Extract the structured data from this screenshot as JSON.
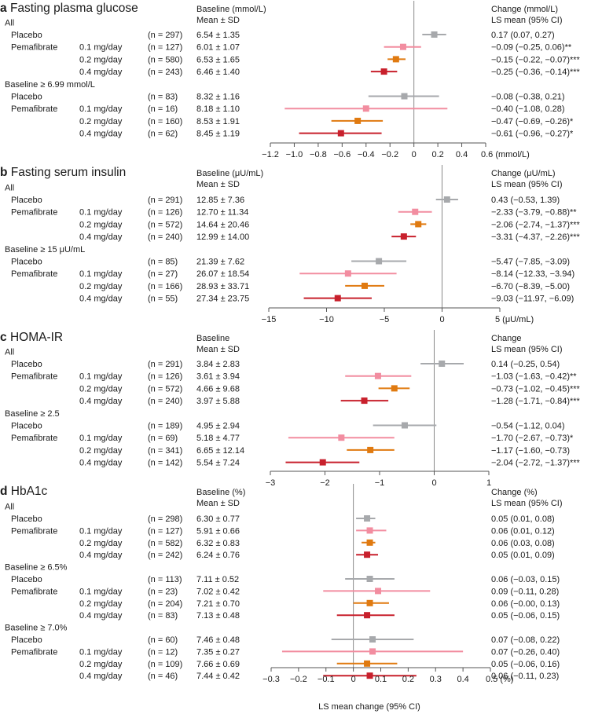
{
  "colors": {
    "placebo": "#a7a9ac",
    "pema_01": "#f28da0",
    "pema_02": "#e07a10",
    "pema_04": "#c8202c",
    "axis": "#555555"
  },
  "footer": {
    "xlabel": "LS mean change (95% CI)"
  },
  "chart_data": [
    {
      "type": "forest",
      "letter": "a",
      "title": "Fasting plasma glucose",
      "col_baseline": [
        "Baseline (mmol/L)",
        "Mean ± SD"
      ],
      "col_change": [
        "Change (mmol/L)",
        "LS mean (95% CI)"
      ],
      "xlim": [
        -1.2,
        0.6
      ],
      "ticks": [
        -1.2,
        -1.0,
        -0.8,
        -0.6,
        -0.4,
        -0.2,
        0,
        0.2,
        0.4,
        0.6
      ],
      "tick_labels": [
        "−1.2",
        "−1.0",
        "−0.8",
        "−0.6",
        "−0.4",
        "−0.2",
        "0",
        "0.2",
        "0.4",
        "0.6 (mmol/L)"
      ],
      "groups": [
        {
          "label": "All",
          "rows": [
            {
              "arm": "Placebo",
              "dose": "",
              "n": "(n = 297)",
              "baseline": "6.54 ± 1.35",
              "est": 0.17,
              "lo": 0.07,
              "hi": 0.27,
              "ci": "0.17 (0.07, 0.27)",
              "color": "placebo"
            },
            {
              "arm": "Pemafibrate",
              "dose": "0.1 mg/day",
              "n": "(n = 127)",
              "baseline": "6.01 ± 1.07",
              "est": -0.09,
              "lo": -0.25,
              "hi": 0.06,
              "ci": "−0.09 (−0.25, 0.06)**",
              "color": "pema_01"
            },
            {
              "arm": "",
              "dose": "0.2 mg/day",
              "n": "(n = 580)",
              "baseline": "6.53 ± 1.65",
              "est": -0.15,
              "lo": -0.22,
              "hi": -0.07,
              "ci": "−0.15 (−0.22, −0.07)***",
              "color": "pema_02"
            },
            {
              "arm": "",
              "dose": "0.4 mg/day",
              "n": "(n = 243)",
              "baseline": "6.46 ± 1.40",
              "est": -0.25,
              "lo": -0.36,
              "hi": -0.14,
              "ci": "−0.25 (−0.36, −0.14)***",
              "color": "pema_04"
            }
          ]
        },
        {
          "label": "Baseline ≥ 6.99 mmol/L",
          "rows": [
            {
              "arm": "Placebo",
              "dose": "",
              "n": "(n = 83)",
              "baseline": "8.32 ± 1.16",
              "est": -0.08,
              "lo": -0.38,
              "hi": 0.21,
              "ci": "−0.08 (−0.38, 0.21)",
              "color": "placebo"
            },
            {
              "arm": "Pemafibrate",
              "dose": "0.1 mg/day",
              "n": "(n = 16)",
              "baseline": "8.18 ± 1.10",
              "est": -0.4,
              "lo": -1.08,
              "hi": 0.28,
              "ci": "−0.40 (−1.08, 0.28)",
              "color": "pema_01"
            },
            {
              "arm": "",
              "dose": "0.2 mg/day",
              "n": "(n = 160)",
              "baseline": "8.53 ± 1.91",
              "est": -0.47,
              "lo": -0.69,
              "hi": -0.26,
              "ci": "−0.47 (−0.69, −0.26)*",
              "color": "pema_02"
            },
            {
              "arm": "",
              "dose": "0.4 mg/day",
              "n": "(n = 62)",
              "baseline": "8.45 ± 1.19",
              "est": -0.61,
              "lo": -0.96,
              "hi": -0.27,
              "ci": "−0.61 (−0.96, −0.27)*",
              "color": "pema_04"
            }
          ]
        }
      ]
    },
    {
      "type": "forest",
      "letter": "b",
      "title": "Fasting serum insulin",
      "col_baseline": [
        "Baseline (μU/mL)",
        "Mean ± SD"
      ],
      "col_change": [
        "Change (μU/mL)",
        "LS mean (95% CI)"
      ],
      "xlim": [
        -15,
        5
      ],
      "ticks": [
        -15,
        -10,
        -5,
        0,
        5
      ],
      "tick_labels": [
        "−15",
        "−10",
        "−5",
        "0",
        "5 (μU/mL)"
      ],
      "groups": [
        {
          "label": "All",
          "rows": [
            {
              "arm": "Placebo",
              "dose": "",
              "n": "(n = 291)",
              "baseline": "12.85 ± 7.36",
              "est": 0.43,
              "lo": -0.53,
              "hi": 1.39,
              "ci": "0.43 (−0.53, 1.39)",
              "color": "placebo"
            },
            {
              "arm": "Pemafibrate",
              "dose": "0.1 mg/day",
              "n": "(n = 126)",
              "baseline": "12.70 ± 11.34",
              "est": -2.33,
              "lo": -3.79,
              "hi": -0.88,
              "ci": "−2.33 (−3.79, −0.88)**",
              "color": "pema_01"
            },
            {
              "arm": "",
              "dose": "0.2 mg/day",
              "n": "(n = 572)",
              "baseline": "14.64 ± 20.46",
              "est": -2.06,
              "lo": -2.74,
              "hi": -1.37,
              "ci": "−2.06 (−2.74, −1.37)***",
              "color": "pema_02"
            },
            {
              "arm": "",
              "dose": "0.4 mg/day",
              "n": "(n = 240)",
              "baseline": "12.99 ± 14.00",
              "est": -3.31,
              "lo": -4.37,
              "hi": -2.26,
              "ci": "−3.31 (−4.37, −2.26)***",
              "color": "pema_04"
            }
          ]
        },
        {
          "label": "Baseline ≥ 15 μU/mL",
          "rows": [
            {
              "arm": "Placebo",
              "dose": "",
              "n": "(n = 85)",
              "baseline": "21.39 ± 7.62",
              "est": -5.47,
              "lo": -7.85,
              "hi": -3.09,
              "ci": "−5.47 (−7.85, −3.09)",
              "color": "placebo"
            },
            {
              "arm": "Pemafibrate",
              "dose": "0.1 mg/day",
              "n": "(n = 27)",
              "baseline": "26.07 ± 18.54",
              "est": -8.14,
              "lo": -12.33,
              "hi": -3.94,
              "ci": "−8.14 (−12.33, −3.94)",
              "color": "pema_01"
            },
            {
              "arm": "",
              "dose": "0.2 mg/day",
              "n": "(n = 166)",
              "baseline": "28.93 ± 33.71",
              "est": -6.7,
              "lo": -8.39,
              "hi": -5.0,
              "ci": "−6.70 (−8.39, −5.00)",
              "color": "pema_02"
            },
            {
              "arm": "",
              "dose": "0.4 mg/day",
              "n": "(n = 55)",
              "baseline": "27.34 ± 23.75",
              "est": -9.03,
              "lo": -11.97,
              "hi": -6.09,
              "ci": "−9.03 (−11.97, −6.09)",
              "color": "pema_04"
            }
          ]
        }
      ]
    },
    {
      "type": "forest",
      "letter": "c",
      "title": "HOMA-IR",
      "col_baseline": [
        "Baseline",
        "Mean ± SD"
      ],
      "col_change": [
        "Change",
        "LS mean (95% CI)"
      ],
      "xlim": [
        -3,
        1
      ],
      "ticks": [
        -3,
        -2,
        -1,
        0,
        1
      ],
      "tick_labels": [
        "−3",
        "−2",
        "−1",
        "0",
        "1"
      ],
      "groups": [
        {
          "label": "All",
          "rows": [
            {
              "arm": "Placebo",
              "dose": "",
              "n": "(n = 291)",
              "baseline": "3.84 ± 2.83",
              "est": 0.14,
              "lo": -0.25,
              "hi": 0.54,
              "ci": "0.14 (−0.25, 0.54)",
              "color": "placebo"
            },
            {
              "arm": "Pemafibrate",
              "dose": "0.1 mg/day",
              "n": "(n = 126)",
              "baseline": "3.61 ± 3.94",
              "est": -1.03,
              "lo": -1.63,
              "hi": -0.42,
              "ci": "−1.03 (−1.63, −0.42)**",
              "color": "pema_01"
            },
            {
              "arm": "",
              "dose": "0.2 mg/day",
              "n": "(n = 572)",
              "baseline": "4.66 ± 9.68",
              "est": -0.73,
              "lo": -1.02,
              "hi": -0.45,
              "ci": "−0.73 (−1.02, −0.45)***",
              "color": "pema_02"
            },
            {
              "arm": "",
              "dose": "0.4 mg/day",
              "n": "(n = 240)",
              "baseline": "3.97 ± 5.88",
              "est": -1.28,
              "lo": -1.71,
              "hi": -0.84,
              "ci": "−1.28 (−1.71, −0.84)***",
              "color": "pema_04"
            }
          ]
        },
        {
          "label": "Baseline ≥ 2.5",
          "rows": [
            {
              "arm": "Placebo",
              "dose": "",
              "n": "(n = 189)",
              "baseline": "4.95 ± 2.94",
              "est": -0.54,
              "lo": -1.12,
              "hi": 0.04,
              "ci": "−0.54 (−1.12, 0.04)",
              "color": "placebo"
            },
            {
              "arm": "Pemafibrate",
              "dose": "0.1 mg/day",
              "n": "(n = 69)",
              "baseline": "5.18 ± 4.77",
              "est": -1.7,
              "lo": -2.67,
              "hi": -0.73,
              "ci": "−1.70 (−2.67, −0.73)*",
              "color": "pema_01"
            },
            {
              "arm": "",
              "dose": "0.2 mg/day",
              "n": "(n = 341)",
              "baseline": "6.65 ± 12.14",
              "est": -1.17,
              "lo": -1.6,
              "hi": -0.73,
              "ci": "−1.17 (−1.60, −0.73)",
              "color": "pema_02"
            },
            {
              "arm": "",
              "dose": "0.4 mg/day",
              "n": "(n = 142)",
              "baseline": "5.54 ± 7.24",
              "est": -2.04,
              "lo": -2.72,
              "hi": -1.37,
              "ci": "−2.04 (−2.72, −1.37)***",
              "color": "pema_04"
            }
          ]
        }
      ]
    },
    {
      "type": "forest",
      "letter": "d",
      "title": "HbA1c",
      "col_baseline": [
        "Baseline (%)",
        "Mean ± SD"
      ],
      "col_change": [
        "Change (%)",
        "LS mean (95% CI)"
      ],
      "xlim": [
        -0.3,
        0.5
      ],
      "ticks": [
        -0.3,
        -0.2,
        -0.1,
        0,
        0.1,
        0.2,
        0.3,
        0.4,
        0.5
      ],
      "tick_labels": [
        "−0.3",
        "−0.2",
        "−0.1",
        "0",
        "0.1",
        "0.2",
        "0.3",
        "0.4",
        "0.5 (%)"
      ],
      "groups": [
        {
          "label": "All",
          "rows": [
            {
              "arm": "Placebo",
              "dose": "",
              "n": "(n = 298)",
              "baseline": "6.30 ± 0.77",
              "est": 0.05,
              "lo": 0.01,
              "hi": 0.08,
              "ci": "0.05 (0.01, 0.08)",
              "color": "placebo"
            },
            {
              "arm": "Pemafibrate",
              "dose": "0.1 mg/day",
              "n": "(n = 127)",
              "baseline": "5.91 ± 0.66",
              "est": 0.06,
              "lo": 0.01,
              "hi": 0.12,
              "ci": "0.06 (0.01, 0.12)",
              "color": "pema_01"
            },
            {
              "arm": "",
              "dose": "0.2 mg/day",
              "n": "(n = 582)",
              "baseline": "6.32 ± 0.83",
              "est": 0.06,
              "lo": 0.03,
              "hi": 0.08,
              "ci": "0.06 (0.03, 0.08)",
              "color": "pema_02"
            },
            {
              "arm": "",
              "dose": "0.4 mg/day",
              "n": "(n = 242)",
              "baseline": "6.24 ± 0.76",
              "est": 0.05,
              "lo": 0.01,
              "hi": 0.09,
              "ci": "0.05 (0.01, 0.09)",
              "color": "pema_04"
            }
          ]
        },
        {
          "label": "Baseline ≥ 6.5%",
          "rows": [
            {
              "arm": "Placebo",
              "dose": "",
              "n": "(n = 113)",
              "baseline": "7.11 ± 0.52",
              "est": 0.06,
              "lo": -0.03,
              "hi": 0.15,
              "ci": "0.06 (−0.03, 0.15)",
              "color": "placebo"
            },
            {
              "arm": "Pemafibrate",
              "dose": "0.1 mg/day",
              "n": "(n = 23)",
              "baseline": "7.02 ± 0.42",
              "est": 0.09,
              "lo": -0.11,
              "hi": 0.28,
              "ci": "0.09 (−0.11, 0.28)",
              "color": "pema_01"
            },
            {
              "arm": "",
              "dose": "0.2 mg/day",
              "n": "(n = 204)",
              "baseline": "7.21 ± 0.70",
              "est": 0.06,
              "lo": -0.0,
              "hi": 0.13,
              "ci": "0.06 (−0.00, 0.13)",
              "color": "pema_02"
            },
            {
              "arm": "",
              "dose": "0.4 mg/day",
              "n": "(n = 83)",
              "baseline": "7.13 ± 0.48",
              "est": 0.05,
              "lo": -0.06,
              "hi": 0.15,
              "ci": "0.05 (−0.06, 0.15)",
              "color": "pema_04"
            }
          ]
        },
        {
          "label": "Baseline ≥ 7.0%",
          "rows": [
            {
              "arm": "Placebo",
              "dose": "",
              "n": "(n = 60)",
              "baseline": "7.46 ± 0.48",
              "est": 0.07,
              "lo": -0.08,
              "hi": 0.22,
              "ci": "0.07 (−0.08, 0.22)",
              "color": "placebo"
            },
            {
              "arm": "Pemafibrate",
              "dose": "0.1 mg/day",
              "n": "(n = 12)",
              "baseline": "7.35 ± 0.27",
              "est": 0.07,
              "lo": -0.26,
              "hi": 0.4,
              "ci": "0.07 (−0.26, 0.40)",
              "color": "pema_01"
            },
            {
              "arm": "",
              "dose": "0.2 mg/day",
              "n": "(n = 109)",
              "baseline": "7.66 ± 0.69",
              "est": 0.05,
              "lo": -0.06,
              "hi": 0.16,
              "ci": "0.05 (−0.06, 0.16)",
              "color": "pema_02"
            },
            {
              "arm": "",
              "dose": "0.4 mg/day",
              "n": "(n = 46)",
              "baseline": "7.44 ± 0.42",
              "est": 0.06,
              "lo": -0.11,
              "hi": 0.23,
              "ci": "0.06 (−0.11, 0.23)",
              "color": "pema_04"
            }
          ]
        }
      ]
    }
  ]
}
